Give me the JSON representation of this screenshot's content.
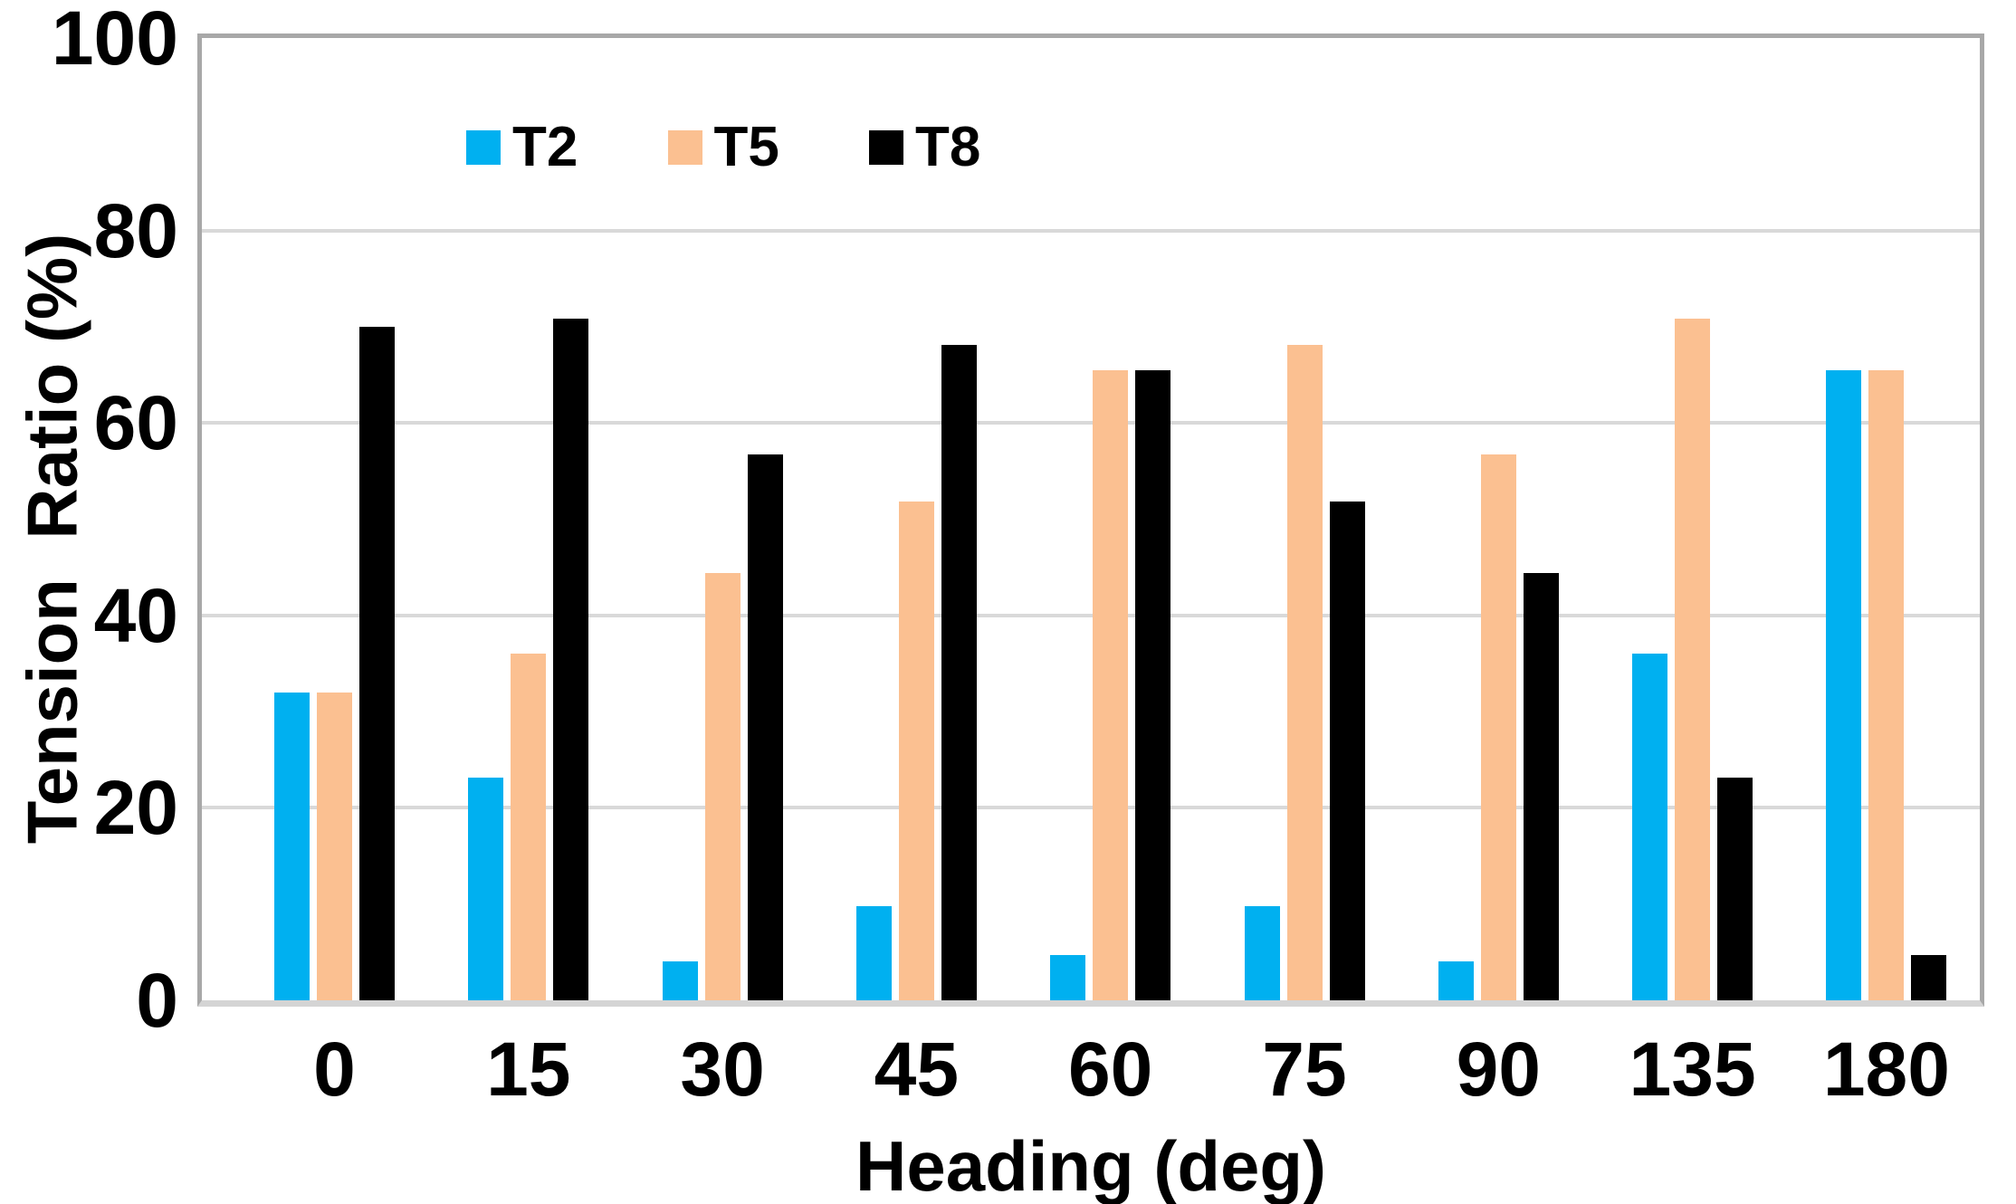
{
  "chart_data": {
    "type": "bar",
    "title": "",
    "xlabel": "Heading (deg)",
    "ylabel": "Tension  Ratio (%)",
    "categories": [
      "0",
      "15",
      "30",
      "45",
      "60",
      "75",
      "90",
      "135",
      "180"
    ],
    "series": [
      {
        "name": "T2",
        "color": "#00B0F0",
        "values": [
          32,
          23.1,
          4,
          9.8,
          4.7,
          9.8,
          4,
          36,
          65.5
        ]
      },
      {
        "name": "T5",
        "color": "#FBC091",
        "values": [
          32,
          36,
          44.4,
          51.8,
          65.5,
          68.1,
          56.7,
          70.8,
          65.5
        ]
      },
      {
        "name": "T8",
        "color": "#000000",
        "values": [
          70,
          70.8,
          56.7,
          68.1,
          65.5,
          51.8,
          44.4,
          23.1,
          4.7
        ]
      }
    ],
    "ylim": [
      0,
      100
    ],
    "yticks": [
      0,
      20,
      40,
      60,
      80,
      100
    ],
    "grid": true,
    "legend_position": "top-center-inside"
  },
  "style_colors": {
    "plot_border": "#A8A8A8",
    "axis_line": "#D4D4D4",
    "gridline": "#D9D9D9",
    "text": "#000000",
    "background": "#FFFFFF"
  }
}
